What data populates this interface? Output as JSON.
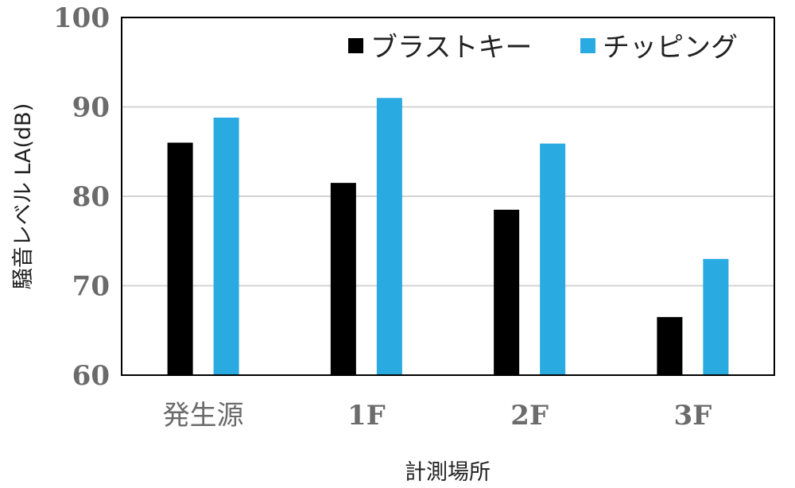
{
  "chart_data": {
    "type": "bar",
    "categories": [
      "発生源",
      "1F",
      "2F",
      "3F"
    ],
    "series": [
      {
        "name": "ブラストキー",
        "color": "#000000",
        "values": [
          86.0,
          81.5,
          78.5,
          66.5
        ]
      },
      {
        "name": "チッピング",
        "color": "#29abe2",
        "values": [
          88.8,
          91.0,
          85.9,
          73.0
        ]
      }
    ],
    "title": "",
    "xlabel": "計測場所",
    "ylabel": "騒音レベル LA(dB)",
    "ylim": [
      60,
      100
    ],
    "yticks": [
      60,
      70,
      80,
      90,
      100
    ],
    "grid": true,
    "legend_position": "top-right"
  }
}
